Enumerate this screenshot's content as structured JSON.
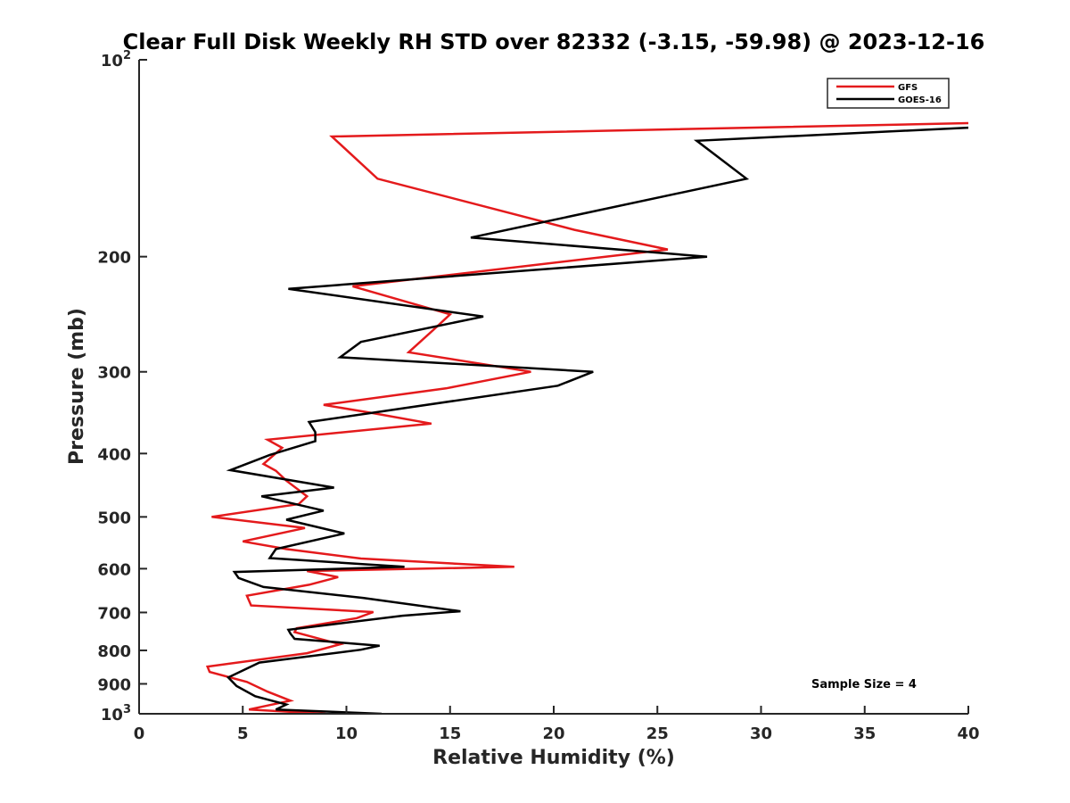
{
  "chart_data": {
    "type": "line",
    "title": "Clear Full Disk Weekly RH STD over 82332 (-3.15, -59.98) @ 2023-12-16",
    "xlabel": "Relative Humidity (%)",
    "ylabel": "Pressure (mb)",
    "xlim": [
      0,
      40
    ],
    "ylim": [
      100,
      1000
    ],
    "y_scale": "log",
    "y_reversed": true,
    "x_ticks": [
      "0",
      "5",
      "10",
      "15",
      "20",
      "25",
      "30",
      "35",
      "40"
    ],
    "y_ticks": [
      {
        "value": 100,
        "base": "10",
        "exp": "2"
      },
      {
        "value": 200,
        "label": "200"
      },
      {
        "value": 300,
        "label": "300"
      },
      {
        "value": 400,
        "label": "400"
      },
      {
        "value": 500,
        "label": "500"
      },
      {
        "value": 600,
        "label": "600"
      },
      {
        "value": 700,
        "label": "700"
      },
      {
        "value": 800,
        "label": "800"
      },
      {
        "value": 900,
        "label": "900"
      },
      {
        "value": 1000,
        "base": "10",
        "exp": "3"
      }
    ],
    "legend_position": "top-right",
    "annotation": "Sample Size = 4",
    "series": [
      {
        "name": "GFS",
        "color": "#e41a1c",
        "points": [
          [
            40,
            125
          ],
          [
            9.3,
            131
          ],
          [
            11.5,
            152
          ],
          [
            21,
            182
          ],
          [
            25.5,
            195
          ],
          [
            10.3,
            222
          ],
          [
            15,
            245
          ],
          [
            14.3,
            257
          ],
          [
            13.0,
            280
          ],
          [
            18.9,
            300
          ],
          [
            14.8,
            318
          ],
          [
            8.9,
            337
          ],
          [
            11.3,
            347
          ],
          [
            14.1,
            360
          ],
          [
            6.2,
            381
          ],
          [
            6.9,
            392
          ],
          [
            6.0,
            415
          ],
          [
            6.6,
            425
          ],
          [
            7.1,
            440
          ],
          [
            8.1,
            465
          ],
          [
            7.7,
            478
          ],
          [
            3.5,
            500
          ],
          [
            8.0,
            520
          ],
          [
            5.0,
            545
          ],
          [
            7.1,
            560
          ],
          [
            10.7,
            579
          ],
          [
            18.1,
            596
          ],
          [
            8.1,
            605
          ],
          [
            9.6,
            618
          ],
          [
            8.2,
            635
          ],
          [
            5.2,
            660
          ],
          [
            5.4,
            683
          ],
          [
            11.3,
            699
          ],
          [
            10.5,
            714
          ],
          [
            7.6,
            740
          ],
          [
            7.5,
            750
          ],
          [
            9.7,
            783
          ],
          [
            8.1,
            808
          ],
          [
            3.3,
            847
          ],
          [
            3.4,
            863
          ],
          [
            5.2,
            894
          ],
          [
            6.2,
            925
          ],
          [
            7.3,
            955
          ],
          [
            5.3,
            985
          ],
          [
            9.0,
            1000
          ]
        ]
      },
      {
        "name": "GOES-16",
        "color": "#000000",
        "points": [
          [
            40,
            127
          ],
          [
            26.9,
            133
          ],
          [
            29.3,
            152
          ],
          [
            16.0,
            187
          ],
          [
            27.4,
            200
          ],
          [
            7.2,
            224
          ],
          [
            16.6,
            247
          ],
          [
            10.7,
            270
          ],
          [
            9.7,
            285
          ],
          [
            21.9,
            300
          ],
          [
            20.2,
            315
          ],
          [
            8.2,
            358
          ],
          [
            8.5,
            371
          ],
          [
            8.5,
            383
          ],
          [
            6.3,
            402
          ],
          [
            4.4,
            424
          ],
          [
            9.4,
            451
          ],
          [
            5.9,
            465
          ],
          [
            8.9,
            489
          ],
          [
            7.1,
            505
          ],
          [
            9.9,
            530
          ],
          [
            6.6,
            560
          ],
          [
            6.3,
            578
          ],
          [
            12.8,
            596
          ],
          [
            4.6,
            607
          ],
          [
            4.8,
            620
          ],
          [
            6.0,
            640
          ],
          [
            10.8,
            665
          ],
          [
            15.5,
            697
          ],
          [
            12.7,
            708
          ],
          [
            7.2,
            744
          ],
          [
            7.3,
            754
          ],
          [
            7.5,
            768
          ],
          [
            11.6,
            787
          ],
          [
            10.7,
            798
          ],
          [
            5.8,
            835
          ],
          [
            4.3,
            880
          ],
          [
            4.7,
            907
          ],
          [
            5.6,
            940
          ],
          [
            6.4,
            955
          ],
          [
            7.1,
            968
          ],
          [
            6.6,
            985
          ],
          [
            11.7,
            1000
          ]
        ]
      }
    ]
  }
}
